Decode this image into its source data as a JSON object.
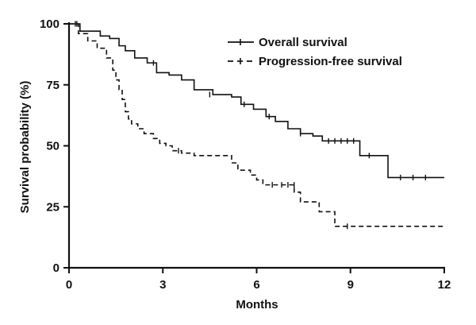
{
  "chart_data": {
    "type": "line",
    "title": "",
    "xlabel": "Months",
    "ylabel": "Survival probability (%)",
    "xlim": [
      0,
      12
    ],
    "ylim": [
      0,
      100
    ],
    "xticks": [
      0,
      3,
      6,
      9,
      12
    ],
    "yticks": [
      0,
      25,
      50,
      75,
      100
    ],
    "grid": false,
    "legend": "top-right",
    "step": true,
    "series": [
      {
        "name": "Overall survival",
        "style": "solid",
        "color": "#111111",
        "x": [
          0,
          0.35,
          1.0,
          1.3,
          1.6,
          1.8,
          2.1,
          2.5,
          2.8,
          3.2,
          3.6,
          4.0,
          4.6,
          5.2,
          5.5,
          5.9,
          6.3,
          6.6,
          7.0,
          7.4,
          7.8,
          8.1,
          9.3,
          10.2,
          12
        ],
        "y": [
          100,
          97,
          95,
          94,
          91,
          89,
          86,
          84,
          80,
          79,
          77,
          73,
          71,
          70,
          67,
          65,
          62,
          60,
          57,
          55,
          54,
          52,
          46,
          37,
          37
        ]
      },
      {
        "name": "Progression-free survival",
        "style": "dashed",
        "color": "#111111",
        "x": [
          0,
          0.3,
          0.6,
          0.9,
          1.2,
          1.4,
          1.5,
          1.6,
          1.7,
          1.8,
          1.9,
          2.0,
          2.2,
          2.4,
          2.7,
          2.9,
          3.1,
          3.3,
          3.6,
          4.0,
          5.2,
          5.4,
          5.8,
          6.0,
          6.2,
          7.2,
          7.4,
          8.0,
          8.5,
          12
        ],
        "y": [
          100,
          96,
          93,
          90,
          86,
          81,
          77,
          73,
          69,
          64,
          61,
          59,
          57,
          55,
          53,
          51,
          50,
          48,
          47,
          46,
          43,
          40,
          38,
          36,
          34,
          31,
          27,
          23,
          17,
          17
        ]
      }
    ],
    "censor_marks": {
      "Overall survival": [
        [
          0.25,
          100
        ],
        [
          2.7,
          84
        ],
        [
          4.5,
          71
        ],
        [
          5.6,
          67
        ],
        [
          6.4,
          62
        ],
        [
          7.4,
          55
        ],
        [
          8.3,
          52
        ],
        [
          8.5,
          52
        ],
        [
          8.7,
          52
        ],
        [
          8.9,
          52
        ],
        [
          9.1,
          52
        ],
        [
          9.6,
          46
        ],
        [
          10.6,
          37
        ],
        [
          11.0,
          37
        ],
        [
          11.4,
          37
        ]
      ],
      "Progression-free survival": [
        [
          0.2,
          100
        ],
        [
          3.5,
          48
        ],
        [
          6.5,
          34
        ],
        [
          6.8,
          34
        ],
        [
          7.0,
          34
        ],
        [
          7.2,
          34
        ],
        [
          8.9,
          17
        ]
      ]
    }
  }
}
